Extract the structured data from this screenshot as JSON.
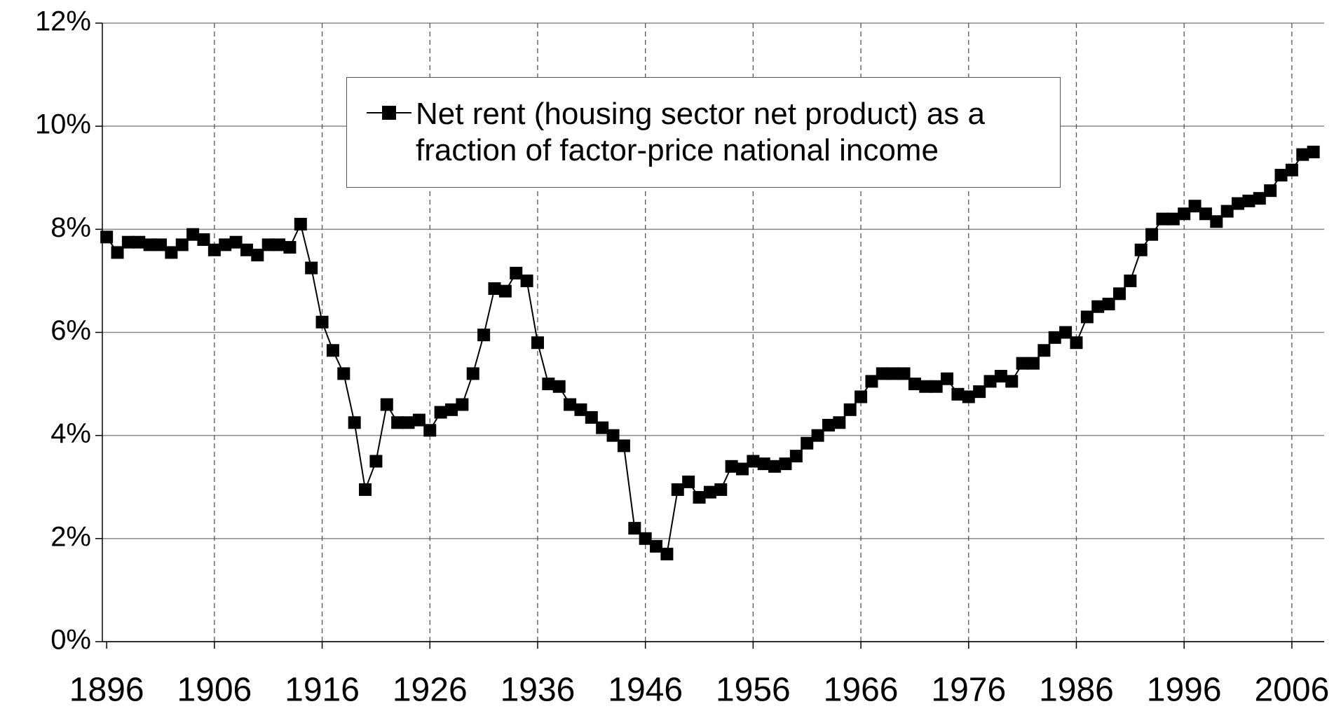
{
  "chart_data": {
    "type": "line",
    "x": [
      1896,
      1897,
      1898,
      1899,
      1900,
      1901,
      1902,
      1903,
      1904,
      1905,
      1906,
      1907,
      1908,
      1909,
      1910,
      1911,
      1912,
      1913,
      1914,
      1915,
      1916,
      1917,
      1918,
      1919,
      1920,
      1921,
      1922,
      1923,
      1924,
      1925,
      1926,
      1927,
      1928,
      1929,
      1930,
      1931,
      1932,
      1933,
      1934,
      1935,
      1936,
      1937,
      1938,
      1939,
      1940,
      1941,
      1942,
      1943,
      1944,
      1945,
      1946,
      1947,
      1948,
      1949,
      1950,
      1951,
      1952,
      1953,
      1954,
      1955,
      1956,
      1957,
      1958,
      1959,
      1960,
      1961,
      1962,
      1963,
      1964,
      1965,
      1966,
      1967,
      1968,
      1969,
      1970,
      1971,
      1972,
      1973,
      1974,
      1975,
      1976,
      1977,
      1978,
      1979,
      1980,
      1981,
      1982,
      1983,
      1984,
      1985,
      1986,
      1987,
      1988,
      1989,
      1990,
      1991,
      1992,
      1993,
      1994,
      1995,
      1996,
      1997,
      1998,
      1999,
      2000,
      2001,
      2002,
      2003,
      2004,
      2005,
      2006,
      2007,
      2008
    ],
    "series": [
      {
        "name": "Net rent (housing sector net product) as a fraction of factor-price national income",
        "color": "#000000",
        "marker": "square",
        "values": [
          7.85,
          7.55,
          7.75,
          7.75,
          7.7,
          7.7,
          7.55,
          7.7,
          7.9,
          7.8,
          7.6,
          7.7,
          7.75,
          7.6,
          7.5,
          7.7,
          7.7,
          7.65,
          8.1,
          7.25,
          6.2,
          5.65,
          5.2,
          4.25,
          2.95,
          3.5,
          4.6,
          4.25,
          4.25,
          4.3,
          4.1,
          4.45,
          4.5,
          4.6,
          5.2,
          5.95,
          6.85,
          6.8,
          7.15,
          7.0,
          5.8,
          5.0,
          4.95,
          4.6,
          4.5,
          4.35,
          4.15,
          4.0,
          3.8,
          2.2,
          2.0,
          1.85,
          1.7,
          2.95,
          3.1,
          2.8,
          2.9,
          2.95,
          3.4,
          3.35,
          3.5,
          3.45,
          3.4,
          3.45,
          3.6,
          3.85,
          4.0,
          4.2,
          4.25,
          4.5,
          4.75,
          5.05,
          5.2,
          5.2,
          5.2,
          5.0,
          4.95,
          4.95,
          5.1,
          4.8,
          4.75,
          4.85,
          5.05,
          5.15,
          5.05,
          5.4,
          5.4,
          5.65,
          5.9,
          6.0,
          5.8,
          6.3,
          6.5,
          6.55,
          6.75,
          7.0,
          7.6,
          7.9,
          8.2,
          8.2,
          8.3,
          8.45,
          8.3,
          8.15,
          8.35,
          8.5,
          8.55,
          8.6,
          8.75,
          9.05,
          9.15,
          9.45,
          9.5
        ]
      }
    ],
    "xlim": [
      1895.6,
      2009
    ],
    "xticks": [
      1896,
      1906,
      1916,
      1926,
      1936,
      1946,
      1956,
      1966,
      1976,
      1986,
      1996,
      2006
    ],
    "ylim": [
      0,
      12
    ],
    "yticks": [
      {
        "value": 0,
        "label": "0%"
      },
      {
        "value": 2,
        "label": "2%"
      },
      {
        "value": 4,
        "label": "4%"
      },
      {
        "value": 6,
        "label": "6%"
      },
      {
        "value": 8,
        "label": "8%"
      },
      {
        "value": 10,
        "label": "10%"
      },
      {
        "value": 12,
        "label": "12%"
      }
    ],
    "grid": true
  }
}
